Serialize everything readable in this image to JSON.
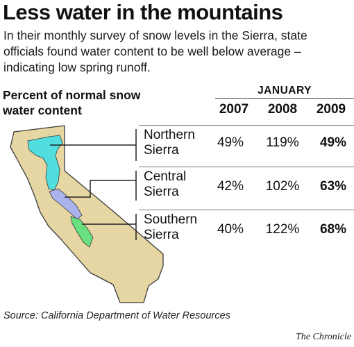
{
  "header": {
    "title": "Less water in the mountains",
    "intro": "In their monthly survey of snow levels in the Sierra, state officials found water content to be well below average – indicating low spring runoff."
  },
  "chart_data": {
    "type": "table",
    "title": "Percent of normal snow water content",
    "group_label": "JANUARY",
    "columns": [
      "2007",
      "2008",
      "2009"
    ],
    "rows": [
      {
        "region_line1": "Northern",
        "region_line2": "Sierra",
        "values": [
          "49%",
          "119%",
          "49%"
        ]
      },
      {
        "region_line1": "Central",
        "region_line2": "Sierra",
        "values": [
          "42%",
          "102%",
          "63%"
        ]
      },
      {
        "region_line1": "Southern",
        "region_line2": "Sierra",
        "values": [
          "40%",
          "122%",
          "68%"
        ]
      }
    ],
    "colors": {
      "state": "#e5d6a3",
      "northern": "#52dede",
      "central": "#aab2ec",
      "southern": "#68e080"
    }
  },
  "footer": {
    "source": "Source: California Department of Water Resources",
    "credit": "The Chronicle"
  }
}
